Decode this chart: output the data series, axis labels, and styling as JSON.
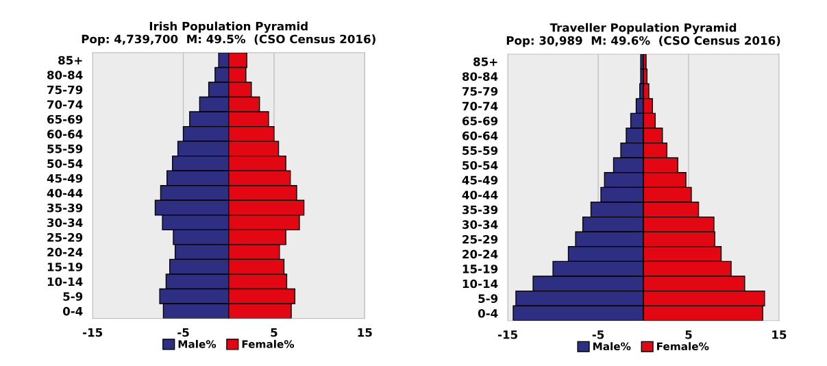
{
  "chart_data": [
    {
      "type": "bar",
      "orientation": "horizontal",
      "title": "Irish Population Pyramid",
      "subtitle": "Pop: 4,739,700  M: 49.5%  (CSO Census 2016)",
      "categories": [
        "85+",
        "80-84",
        "75-79",
        "70-74",
        "65-69",
        "60-64",
        "55-59",
        "50-54",
        "45-49",
        "40-44",
        "35-39",
        "30-34",
        "25-29",
        "20-24",
        "15-19",
        "10-14",
        "5-9",
        "0-4"
      ],
      "series": [
        {
          "name": "Male%",
          "color": "#2e2e82",
          "values": [
            -1.1,
            -1.5,
            -2.2,
            -3.2,
            -4.3,
            -5.0,
            -5.6,
            -6.2,
            -6.8,
            -7.5,
            -8.1,
            -7.3,
            -6.1,
            -5.9,
            -6.5,
            -6.9,
            -7.6,
            -7.2
          ]
        },
        {
          "name": "Female%",
          "color": "#e30613",
          "values": [
            2.0,
            1.9,
            2.5,
            3.4,
            4.4,
            5.0,
            5.5,
            6.3,
            6.8,
            7.5,
            8.3,
            7.8,
            6.3,
            5.6,
            6.1,
            6.4,
            7.3,
            6.9
          ]
        }
      ],
      "xlim": [
        -15,
        15
      ],
      "xticks": [
        -15,
        -5,
        5,
        15
      ],
      "grid": "x",
      "legend": "bottom",
      "stacked": true
    },
    {
      "type": "bar",
      "orientation": "horizontal",
      "title": "Traveller Population Pyramid",
      "subtitle": "Pop: 30,989  M: 49.6%  (CSO Census 2016)",
      "categories": [
        "85+",
        "80-84",
        "75-79",
        "70-74",
        "65-69",
        "60-64",
        "55-59",
        "50-54",
        "45-49",
        "40-44",
        "35-39",
        "30-34",
        "25-29",
        "20-24",
        "15-19",
        "10-14",
        "5-9",
        "0-4"
      ],
      "series": [
        {
          "name": "Male%",
          "color": "#2e2e82",
          "values": [
            -0.3,
            -0.3,
            -0.4,
            -0.8,
            -1.4,
            -1.9,
            -2.5,
            -3.3,
            -4.3,
            -4.7,
            -5.8,
            -6.7,
            -7.5,
            -8.3,
            -10.0,
            -12.2,
            -14.1,
            -14.4
          ]
        },
        {
          "name": "Female%",
          "color": "#e30613",
          "values": [
            0.3,
            0.4,
            0.6,
            1.0,
            1.3,
            2.1,
            2.6,
            3.8,
            4.7,
            5.3,
            6.1,
            7.8,
            7.9,
            8.6,
            9.7,
            11.2,
            13.4,
            13.2
          ]
        }
      ],
      "xlim": [
        -15,
        15
      ],
      "xticks": [
        -15,
        -5,
        5,
        15
      ],
      "grid": "x",
      "legend": "bottom",
      "stacked": true
    }
  ]
}
